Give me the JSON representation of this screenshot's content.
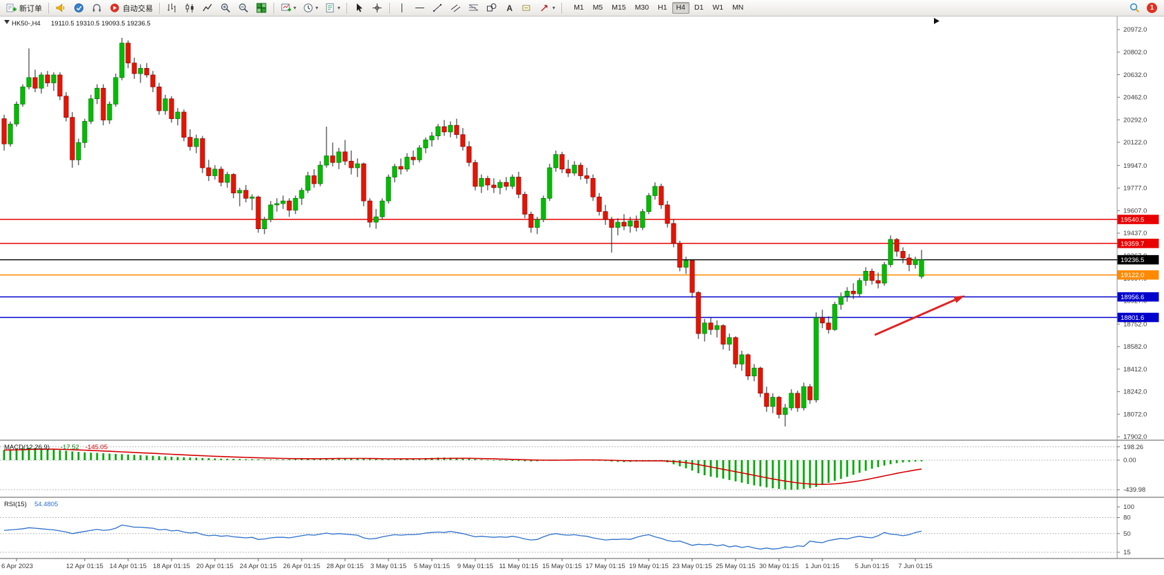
{
  "toolbar": {
    "new_order_label": "新订单",
    "autotrade_label": "自动交易",
    "timeframes": [
      "M1",
      "M5",
      "M15",
      "M30",
      "H1",
      "H4",
      "D1",
      "W1",
      "MN"
    ],
    "active_timeframe": "H4",
    "notification_count": "1"
  },
  "chart_data": {
    "type": "candlestick",
    "symbol": "HK50-",
    "period": "H4",
    "title": "HK50-,H4",
    "ohlc_text": "19110.5 19310.5 19093.5 19236.5",
    "open": 19110.5,
    "high": 19310.5,
    "low": 19093.5,
    "close": 19236.5,
    "price_min": 17902.0,
    "price_max": 20972.0,
    "colors": {
      "up": "#00bd00",
      "up_edge": "#007400",
      "down": "#e51400",
      "down_edge": "#8c0000",
      "wick": "#1a1a1a",
      "macd_hist": "#00a800",
      "macd_signal": "#d40000",
      "rsi_line": "#2a6fc9",
      "arrow": "#e02424"
    },
    "price_axis_labels": [
      "20972.0",
      "20802.0",
      "20632.0",
      "20462.0",
      "20292.0",
      "20122.0",
      "19947.0",
      "19777.0",
      "19607.0",
      "19437.0",
      "19267.0",
      "19097.0",
      "18927.0",
      "18752.0",
      "18582.0",
      "18412.0",
      "18242.0",
      "18072.0",
      "17902.0"
    ],
    "x_labels": [
      [
        2,
        "6 Apr 2023"
      ],
      [
        13,
        "12 Apr 01:15"
      ],
      [
        20,
        "14 Apr 01:15"
      ],
      [
        27,
        "18 Apr 01:15"
      ],
      [
        34,
        "20 Apr 01:15"
      ],
      [
        41,
        "24 Apr 01:15"
      ],
      [
        48,
        "26 Apr 01:15"
      ],
      [
        55,
        "28 Apr 01:15"
      ],
      [
        62,
        "3 May 01:15"
      ],
      [
        69,
        "5 May 01:15"
      ],
      [
        76,
        "9 May 01:15"
      ],
      [
        83,
        "11 May 01:15"
      ],
      [
        90,
        "15 May 01:15"
      ],
      [
        97,
        "17 May 01:15"
      ],
      [
        104,
        "19 May 01:15"
      ],
      [
        111,
        "23 May 01:15"
      ],
      [
        118,
        "25 May 01:15"
      ],
      [
        125,
        "30 May 01:15"
      ],
      [
        132,
        "1 Jun 01:15"
      ],
      [
        140,
        "5 Jun 01:15"
      ],
      [
        147,
        "7 Jun 01:15"
      ]
    ],
    "hlines": [
      {
        "price": 19540.5,
        "label": "19540.5",
        "color": "#e80000"
      },
      {
        "price": 19359.7,
        "label": "19359.7",
        "color": "#e80000"
      },
      {
        "price": 19236.5,
        "label": "19236.5",
        "color": "#000000"
      },
      {
        "price": 19122.0,
        "label": "19122.0",
        "color": "#ff8a00"
      },
      {
        "price": 18956.6,
        "label": "18956.6",
        "color": "#0000cd"
      },
      {
        "price": 18801.6,
        "label": "18801.6",
        "color": "#0000cd"
      }
    ],
    "candles": [
      [
        20300,
        20330,
        20060,
        20110
      ],
      [
        20110,
        20280,
        20090,
        20260
      ],
      [
        20260,
        20430,
        20240,
        20410
      ],
      [
        20410,
        20560,
        20390,
        20540
      ],
      [
        20540,
        20830,
        20520,
        20610
      ],
      [
        20610,
        20670,
        20500,
        20530
      ],
      [
        20530,
        20650,
        20490,
        20630
      ],
      [
        20630,
        20660,
        20540,
        20570
      ],
      [
        20570,
        20650,
        20510,
        20630
      ],
      [
        20630,
        20650,
        20440,
        20470
      ],
      [
        20470,
        20500,
        20280,
        20310
      ],
      [
        20310,
        20350,
        19930,
        19990
      ],
      [
        19990,
        20150,
        19950,
        20120
      ],
      [
        20120,
        20300,
        20080,
        20280
      ],
      [
        20280,
        20480,
        20260,
        20450
      ],
      [
        20450,
        20560,
        20410,
        20530
      ],
      [
        20530,
        20560,
        20250,
        20290
      ],
      [
        20290,
        20430,
        20260,
        20410
      ],
      [
        20410,
        20640,
        20390,
        20610
      ],
      [
        20610,
        20910,
        20590,
        20870
      ],
      [
        20870,
        20890,
        20680,
        20720
      ],
      [
        20720,
        20760,
        20600,
        20640
      ],
      [
        20640,
        20710,
        20570,
        20680
      ],
      [
        20680,
        20720,
        20610,
        20630
      ],
      [
        20630,
        20660,
        20500,
        20540
      ],
      [
        20540,
        20570,
        20330,
        20360
      ],
      [
        20360,
        20480,
        20330,
        20450
      ],
      [
        20450,
        20470,
        20270,
        20300
      ],
      [
        20300,
        20380,
        20250,
        20350
      ],
      [
        20350,
        20370,
        20130,
        20160
      ],
      [
        20160,
        20220,
        20060,
        20090
      ],
      [
        20090,
        20180,
        20040,
        20150
      ],
      [
        20150,
        20170,
        19890,
        19930
      ],
      [
        19930,
        19990,
        19830,
        19870
      ],
      [
        19870,
        19950,
        19840,
        19920
      ],
      [
        19920,
        19940,
        19790,
        19820
      ],
      [
        19820,
        19900,
        19780,
        19880
      ],
      [
        19880,
        19890,
        19700,
        19740
      ],
      [
        19740,
        19780,
        19640,
        19760
      ],
      [
        19760,
        19800,
        19670,
        19700
      ],
      [
        19700,
        19730,
        19610,
        19710
      ],
      [
        19710,
        19720,
        19440,
        19470
      ],
      [
        19470,
        19560,
        19430,
        19540
      ],
      [
        19540,
        19680,
        19520,
        19650
      ],
      [
        19650,
        19700,
        19600,
        19660
      ],
      [
        19660,
        19720,
        19620,
        19680
      ],
      [
        19680,
        19700,
        19560,
        19610
      ],
      [
        19610,
        19720,
        19580,
        19700
      ],
      [
        19700,
        19780,
        19650,
        19760
      ],
      [
        19760,
        19900,
        19740,
        19870
      ],
      [
        19870,
        19920,
        19780,
        19810
      ],
      [
        19810,
        19980,
        19790,
        19950
      ],
      [
        19950,
        20240,
        19930,
        20020
      ],
      [
        20020,
        20120,
        19940,
        19970
      ],
      [
        19970,
        20080,
        19920,
        20050
      ],
      [
        20050,
        20140,
        19950,
        19980
      ],
      [
        19980,
        20060,
        19880,
        19930
      ],
      [
        19930,
        20000,
        19860,
        19960
      ],
      [
        19960,
        19970,
        19640,
        19680
      ],
      [
        19680,
        19700,
        19480,
        19520
      ],
      [
        19520,
        19620,
        19470,
        19560
      ],
      [
        19560,
        19700,
        19540,
        19680
      ],
      [
        19680,
        19880,
        19660,
        19860
      ],
      [
        19860,
        19960,
        19820,
        19940
      ],
      [
        19940,
        20000,
        19880,
        19920
      ],
      [
        19920,
        20040,
        19900,
        20010
      ],
      [
        20010,
        20060,
        19950,
        19990
      ],
      [
        19990,
        20100,
        19970,
        20080
      ],
      [
        20080,
        20160,
        20040,
        20140
      ],
      [
        20140,
        20200,
        20090,
        20170
      ],
      [
        20170,
        20260,
        20140,
        20240
      ],
      [
        20240,
        20290,
        20170,
        20200
      ],
      [
        20200,
        20280,
        20160,
        20250
      ],
      [
        20250,
        20300,
        20150,
        20180
      ],
      [
        20180,
        20230,
        20060,
        20090
      ],
      [
        20090,
        20130,
        19940,
        19970
      ],
      [
        19970,
        19990,
        19760,
        19790
      ],
      [
        19790,
        19880,
        19740,
        19850
      ],
      [
        19850,
        19870,
        19760,
        19800
      ],
      [
        19800,
        19850,
        19740,
        19780
      ],
      [
        19780,
        19840,
        19730,
        19820
      ],
      [
        19820,
        19860,
        19760,
        19790
      ],
      [
        19790,
        19880,
        19770,
        19860
      ],
      [
        19860,
        19900,
        19700,
        19730
      ],
      [
        19730,
        19750,
        19550,
        19580
      ],
      [
        19580,
        19600,
        19440,
        19480
      ],
      [
        19480,
        19560,
        19430,
        19540
      ],
      [
        19540,
        19720,
        19520,
        19700
      ],
      [
        19700,
        19960,
        19680,
        19930
      ],
      [
        19930,
        20060,
        19900,
        20030
      ],
      [
        20030,
        20050,
        19890,
        19920
      ],
      [
        19920,
        19990,
        19860,
        19890
      ],
      [
        19890,
        19980,
        19870,
        19950
      ],
      [
        19950,
        19970,
        19840,
        19870
      ],
      [
        19870,
        19930,
        19810,
        19850
      ],
      [
        19850,
        19880,
        19680,
        19710
      ],
      [
        19710,
        19740,
        19570,
        19600
      ],
      [
        19600,
        19650,
        19500,
        19540
      ],
      [
        19540,
        19560,
        19290,
        19480
      ],
      [
        19480,
        19550,
        19420,
        19520
      ],
      [
        19520,
        19580,
        19460,
        19490
      ],
      [
        19490,
        19560,
        19440,
        19530
      ],
      [
        19530,
        19570,
        19450,
        19480
      ],
      [
        19480,
        19620,
        19460,
        19600
      ],
      [
        19600,
        19740,
        19580,
        19720
      ],
      [
        19720,
        19820,
        19690,
        19790
      ],
      [
        19790,
        19810,
        19620,
        19650
      ],
      [
        19650,
        19680,
        19480,
        19510
      ],
      [
        19510,
        19540,
        19330,
        19360
      ],
      [
        19360,
        19380,
        19150,
        19180
      ],
      [
        19180,
        19260,
        19130,
        19230
      ],
      [
        19230,
        19240,
        18950,
        18990
      ],
      [
        18990,
        19000,
        18640,
        18680
      ],
      [
        18680,
        18790,
        18620,
        18760
      ],
      [
        18760,
        18800,
        18670,
        18710
      ],
      [
        18710,
        18780,
        18650,
        18740
      ],
      [
        18740,
        18750,
        18560,
        18600
      ],
      [
        18600,
        18680,
        18550,
        18650
      ],
      [
        18650,
        18660,
        18420,
        18450
      ],
      [
        18450,
        18550,
        18400,
        18520
      ],
      [
        18520,
        18530,
        18330,
        18360
      ],
      [
        18360,
        18450,
        18320,
        18420
      ],
      [
        18420,
        18430,
        18200,
        18230
      ],
      [
        18230,
        18280,
        18090,
        18130
      ],
      [
        18130,
        18230,
        18080,
        18200
      ],
      [
        18200,
        18210,
        18040,
        18070
      ],
      [
        18070,
        18150,
        17980,
        18120
      ],
      [
        18120,
        18260,
        18100,
        18230
      ],
      [
        18230,
        18250,
        18090,
        18120
      ],
      [
        18120,
        18310,
        18100,
        18280
      ],
      [
        18280,
        18300,
        18150,
        18180
      ],
      [
        18180,
        18840,
        18160,
        18800
      ],
      [
        18800,
        18860,
        18720,
        18760
      ],
      [
        18760,
        18810,
        18680,
        18710
      ],
      [
        18710,
        18920,
        18700,
        18900
      ],
      [
        18900,
        18990,
        18860,
        18960
      ],
      [
        18960,
        19030,
        18920,
        19000
      ],
      [
        19000,
        19060,
        18940,
        18980
      ],
      [
        18980,
        19100,
        18960,
        19080
      ],
      [
        19080,
        19180,
        19040,
        19150
      ],
      [
        19150,
        19170,
        19050,
        19080
      ],
      [
        19080,
        19140,
        19020,
        19060
      ],
      [
        19060,
        19220,
        19040,
        19200
      ],
      [
        19200,
        19420,
        19180,
        19390
      ],
      [
        19390,
        19400,
        19260,
        19300
      ],
      [
        19300,
        19330,
        19210,
        19250
      ],
      [
        19250,
        19280,
        19150,
        19200
      ],
      [
        19200,
        19260,
        19170,
        19240
      ],
      [
        19110.5,
        19310.5,
        19093.5,
        19236.5
      ]
    ],
    "macd": {
      "label": "MACD(12,26,9)",
      "value_main": "-17.52",
      "value_signal": "-145.05",
      "axis_labels": [
        "198.26",
        "0.00",
        "-439.98"
      ],
      "hist": [
        150,
        160,
        170,
        178,
        185,
        180,
        174,
        166,
        158,
        148,
        140,
        130,
        122,
        116,
        112,
        108,
        102,
        97,
        92,
        88,
        84,
        79,
        74,
        69,
        64,
        59,
        55,
        51,
        47,
        43,
        39,
        36,
        32,
        29,
        26,
        23,
        21,
        19,
        17,
        15,
        14,
        12,
        10,
        9,
        9,
        10,
        12,
        14,
        16,
        18,
        21,
        24,
        28,
        31,
        33,
        31,
        29,
        26,
        22,
        18,
        14,
        11,
        10,
        12,
        15,
        18,
        22,
        26,
        30,
        34,
        37,
        39,
        37,
        33,
        28,
        22,
        16,
        9,
        4,
        0,
        -4,
        -8,
        -11,
        -13,
        -16,
        -19,
        -16,
        -11,
        -5,
        1,
        6,
        9,
        11,
        9,
        5,
        0,
        -6,
        -13,
        -21,
        -26,
        -29,
        -26,
        -21,
        -16,
        -11,
        -9,
        -16,
        -32,
        -62,
        -92,
        -122,
        -155,
        -195,
        -225,
        -245,
        -260,
        -275,
        -295,
        -315,
        -335,
        -355,
        -375,
        -390,
        -405,
        -418,
        -428,
        -436,
        -440,
        -437,
        -428,
        -416,
        -398,
        -368,
        -338,
        -308,
        -278,
        -248,
        -218,
        -188,
        -158,
        -128,
        -104,
        -80,
        -60,
        -45,
        -34,
        -27,
        -21,
        -17.52
      ]
    },
    "rsi": {
      "label": "RSI(15)",
      "value": "54.4805",
      "axis_labels": [
        "100",
        "80",
        "50",
        "15"
      ],
      "levels": [
        80,
        50,
        15
      ],
      "values": [
        56,
        57,
        58,
        59,
        61,
        60,
        59,
        58,
        57,
        55,
        53,
        50,
        52,
        54,
        56,
        58,
        56,
        57,
        60,
        66,
        64,
        62,
        62,
        61,
        60,
        57,
        58,
        55,
        56,
        53,
        51,
        52,
        48,
        46,
        47,
        45,
        46,
        44,
        43,
        42,
        43,
        39,
        40,
        42,
        43,
        43,
        42,
        44,
        46,
        48,
        47,
        49,
        51,
        49,
        50,
        49,
        48,
        47,
        42,
        40,
        41,
        44,
        46,
        48,
        47,
        48,
        48,
        49,
        51,
        52,
        53,
        52,
        54,
        52,
        50,
        47,
        44,
        45,
        44,
        43,
        44,
        43,
        45,
        43,
        40,
        38,
        39,
        44,
        48,
        50,
        48,
        47,
        48,
        46,
        45,
        42,
        40,
        38,
        39,
        39,
        40,
        39,
        43,
        46,
        48,
        44,
        41,
        37,
        35,
        36,
        32,
        28,
        30,
        29,
        30,
        27,
        29,
        25,
        27,
        24,
        26,
        23,
        21,
        23,
        21,
        22,
        25,
        24,
        27,
        26,
        36,
        34,
        33,
        37,
        39,
        41,
        40,
        43,
        45,
        43,
        42,
        46,
        52,
        49,
        48,
        46,
        48,
        52,
        54.48
      ]
    }
  }
}
